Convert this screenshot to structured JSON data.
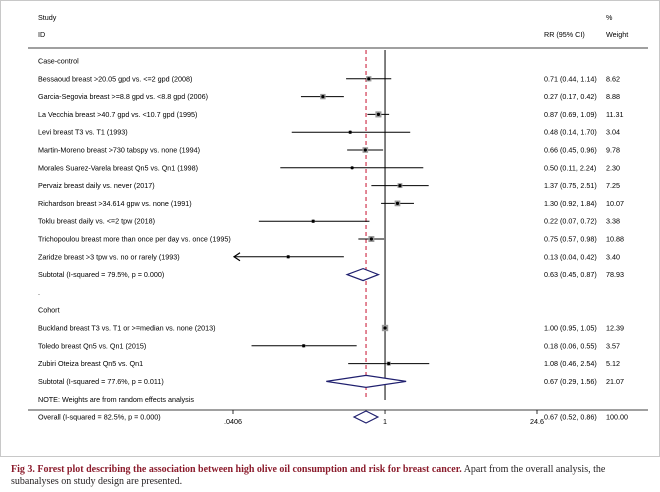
{
  "header": {
    "study_line1": "Study",
    "study_line2": "ID",
    "rr_label": "RR (95% CI)",
    "pct_label": "%",
    "weight_label": "Weight"
  },
  "chart_data": {
    "type": "forest",
    "x_scale": "log",
    "xlim": [
      0.0406,
      24.6
    ],
    "ticks": [
      {
        "value": 0.0406,
        "label": ".0406"
      },
      {
        "value": 1,
        "label": "1"
      },
      {
        "value": 24.6,
        "label": "24.6"
      }
    ],
    "null_line": 1,
    "overall_line": 0.67,
    "rows": [
      {
        "kind": "header",
        "label": "Case-control"
      },
      {
        "kind": "study",
        "label": "Bessaoud breast >20.05 gpd vs. <=2 gpd (2008)",
        "est": 0.71,
        "lo": 0.44,
        "hi": 1.14,
        "ci": "0.71 (0.44, 1.14)",
        "weight": "8.62",
        "w": 8.62
      },
      {
        "kind": "study",
        "label": "Garcia-Segovia breast >=8.8 gpd vs. <8.8 gpd (2006)",
        "est": 0.27,
        "lo": 0.17,
        "hi": 0.42,
        "ci": "0.27 (0.17, 0.42)",
        "weight": "8.88",
        "w": 8.88
      },
      {
        "kind": "study",
        "label": "La Vecchia breast >40.7 gpd vs. <10.7 gpd (1995)",
        "est": 0.87,
        "lo": 0.69,
        "hi": 1.09,
        "ci": "0.87 (0.69, 1.09)",
        "weight": "11.31",
        "w": 11.31
      },
      {
        "kind": "study",
        "label": "Levi breast T3 vs. T1 (1993)",
        "est": 0.48,
        "lo": 0.14,
        "hi": 1.7,
        "ci": "0.48 (0.14, 1.70)",
        "weight": "3.04",
        "w": 3.04
      },
      {
        "kind": "study",
        "label": "Martin-Moreno breast >730 tabspy vs. none (1994)",
        "est": 0.66,
        "lo": 0.45,
        "hi": 0.96,
        "ci": "0.66 (0.45, 0.96)",
        "weight": "9.78",
        "w": 9.78
      },
      {
        "kind": "study",
        "label": "Morales Suarez-Varela breast Qn5 vs. Qn1 (1998)",
        "est": 0.5,
        "lo": 0.11,
        "hi": 2.24,
        "ci": "0.50 (0.11, 2.24)",
        "weight": "2.30",
        "w": 2.3
      },
      {
        "kind": "study",
        "label": "Pervaiz breast daily vs. never (2017)",
        "est": 1.37,
        "lo": 0.75,
        "hi": 2.51,
        "ci": "1.37 (0.75, 2.51)",
        "weight": "7.25",
        "w": 7.25
      },
      {
        "kind": "study",
        "label": "Richardson breast >34.614 gpw vs. none (1991)",
        "est": 1.3,
        "lo": 0.92,
        "hi": 1.84,
        "ci": "1.30 (0.92, 1.84)",
        "weight": "10.07",
        "w": 10.07
      },
      {
        "kind": "study",
        "label": "Toklu breast daily vs. <=2 tpw (2018)",
        "est": 0.22,
        "lo": 0.07,
        "hi": 0.72,
        "ci": "0.22 (0.07, 0.72)",
        "weight": "3.38",
        "w": 3.38
      },
      {
        "kind": "study",
        "label": "Trichopoulou breast more than once per day vs. once (1995)",
        "est": 0.75,
        "lo": 0.57,
        "hi": 0.98,
        "ci": "0.75 (0.57, 0.98)",
        "weight": "10.88",
        "w": 10.88
      },
      {
        "kind": "study",
        "label": "Zaridze breast >3 tpw vs. no or rarely (1993)",
        "est": 0.13,
        "lo": 0.04,
        "hi": 0.42,
        "ci": "0.13 (0.04, 0.42)",
        "weight": "3.40",
        "w": 3.4,
        "arrow_left": true
      },
      {
        "kind": "subtotal",
        "label": "Subtotal  (I-squared = 79.5%, p = 0.000)",
        "est": 0.63,
        "lo": 0.45,
        "hi": 0.87,
        "ci": "0.63 (0.45, 0.87)",
        "weight": "78.93"
      },
      {
        "kind": "dot",
        "label": "."
      },
      {
        "kind": "header",
        "label": "Cohort"
      },
      {
        "kind": "study",
        "label": "Buckland breast T3 vs. T1 or >=median vs. none (2013)",
        "est": 1.0,
        "lo": 0.95,
        "hi": 1.05,
        "ci": "1.00 (0.95, 1.05)",
        "weight": "12.39",
        "w": 12.39
      },
      {
        "kind": "study",
        "label": "Toledo breast Qn5 vs. Qn1 (2015)",
        "est": 0.18,
        "lo": 0.06,
        "hi": 0.55,
        "ci": "0.18 (0.06, 0.55)",
        "weight": "3.57",
        "w": 3.57
      },
      {
        "kind": "study",
        "label": "Zubiri Oteiza breast Qn5 vs. Qn1",
        "est": 1.08,
        "lo": 0.46,
        "hi": 2.54,
        "ci": "1.08 (0.46, 2.54)",
        "weight": "5.12",
        "w": 5.12
      },
      {
        "kind": "subtotal",
        "label": "Subtotal  (I-squared = 77.6%, p = 0.011)",
        "est": 0.67,
        "lo": 0.29,
        "hi": 1.56,
        "ci": "0.67 (0.29, 1.56)",
        "weight": "21.07"
      },
      {
        "kind": "dot",
        "label": "."
      },
      {
        "kind": "overall",
        "label": "Overall  (I-squared = 82.5%, p = 0.000)",
        "est": 0.67,
        "lo": 0.52,
        "hi": 0.86,
        "ci": "0.67 (0.52, 0.86)",
        "weight": "100.00"
      }
    ],
    "note": "NOTE: Weights are from random effects analysis"
  },
  "caption": {
    "label": "Fig 3. Forest plot describing the association between high olive oil consumption and risk for breast cancer.",
    "text": " Apart from the overall analysis, the subanalyses on study design are presented."
  },
  "colors": {
    "diamond": "#1f1f6e",
    "ref_line": "#c8102e",
    "box": "#9a9a9a",
    "caption_label": "#8b1c2c"
  }
}
